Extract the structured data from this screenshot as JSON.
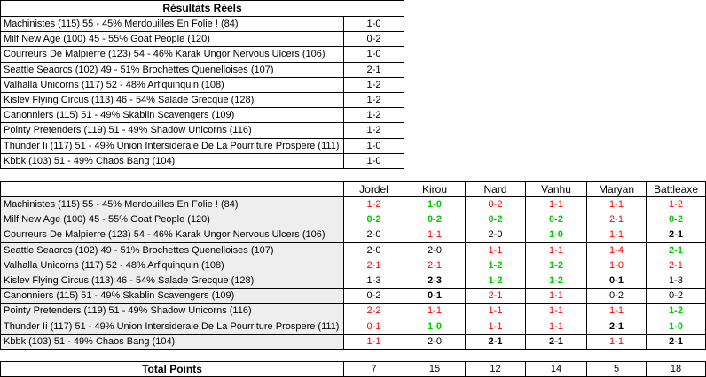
{
  "actual": {
    "title": "Résultats Réels",
    "rows": [
      [
        "Machinistes (115) 55 - 45% Merdouilles En Folie ! (84)",
        "1-0"
      ],
      [
        "Milf New Age (100) 45 - 55% Goat People (120)",
        "0-2"
      ],
      [
        "Courreurs De Malpierre (123) 54 - 46% Karak Ungor Nervous Ulcers (106)",
        "1-0"
      ],
      [
        "Seattle Seaorcs (102) 49 - 51% Brochettes Quenelloises (107)",
        "2-1"
      ],
      [
        "Valhalla Unicorns (117) 52 - 48% Arf'quinquin (108)",
        "1-2"
      ],
      [
        "Kislev Flying Circus (113) 46 - 54% Salade Grecque (128)",
        "1-2"
      ],
      [
        "Canonniers (115) 51 - 49% Skablin Scavengers (109)",
        "1-2"
      ],
      [
        "Pointy Pretenders (119) 51 - 49% Shadow Unicorns (116)",
        "1-2"
      ],
      [
        "Thunder Ii (117) 51 - 49% Union Intersiderale De La Pourriture Prospere (111)",
        "1-0"
      ],
      [
        "Kbbk (103) 51 - 49% Chaos Bang (104)",
        "1-0"
      ]
    ]
  },
  "predictions": {
    "players": [
      "Jordel",
      "Kirou",
      "Nard",
      "Vanhu",
      "Maryan",
      "Battleaxe"
    ],
    "rows": [
      {
        "match": "Machinistes (115) 55 - 45% Merdouilles En Folie ! (84)",
        "picks": [
          "1-2",
          "1-0",
          "0-2",
          "1-1",
          "1-1",
          "1-2"
        ],
        "status": [
          "red",
          "green",
          "red",
          "red",
          "red",
          "red"
        ]
      },
      {
        "match": "Milf New Age (100) 45 - 55% Goat People (120)",
        "picks": [
          "0-2",
          "0-2",
          "0-2",
          "0-2",
          "2-1",
          "0-2"
        ],
        "status": [
          "green",
          "green",
          "green",
          "green",
          "red",
          "green"
        ]
      },
      {
        "match": "Courreurs De Malpierre (123) 54 - 46% Karak Ungor Nervous Ulcers (106)",
        "picks": [
          "2-0",
          "1-1",
          "2-0",
          "1-0",
          "1-1",
          "2-1"
        ],
        "status": [
          "plain",
          "red",
          "plain",
          "green",
          "red",
          "bold"
        ]
      },
      {
        "match": "Seattle Seaorcs (102) 49 - 51% Brochettes Quenelloises (107)",
        "picks": [
          "2-0",
          "2-0",
          "1-1",
          "1-1",
          "1-4",
          "2-1"
        ],
        "status": [
          "plain",
          "plain",
          "red",
          "red",
          "red",
          "green"
        ]
      },
      {
        "match": "Valhalla Unicorns (117) 52 - 48% Arf'quinquin (108)",
        "picks": [
          "2-1",
          "2-1",
          "1-2",
          "1-2",
          "1-0",
          "2-1"
        ],
        "status": [
          "red",
          "red",
          "green",
          "green",
          "red",
          "red"
        ]
      },
      {
        "match": "Kislev Flying Circus (113) 46 - 54% Salade Grecque (128)",
        "picks": [
          "1-3",
          "2-3",
          "1-2",
          "1-2",
          "0-1",
          "1-3"
        ],
        "status": [
          "plain",
          "bold",
          "green",
          "green",
          "bold",
          "plain"
        ]
      },
      {
        "match": "Canonniers (115) 51 - 49% Skablin Scavengers (109)",
        "picks": [
          "0-2",
          "0-1",
          "2-1",
          "1-1",
          "0-2",
          "0-2"
        ],
        "status": [
          "plain",
          "bold",
          "red",
          "red",
          "plain",
          "plain"
        ]
      },
      {
        "match": "Pointy Pretenders (119) 51 - 49% Shadow Unicorns (116)",
        "picks": [
          "2-2",
          "1-1",
          "1-1",
          "1-1",
          "1-1",
          "1-2"
        ],
        "status": [
          "red",
          "red",
          "red",
          "red",
          "red",
          "green"
        ]
      },
      {
        "match": "Thunder Ii (117) 51 - 49% Union Intersiderale De La Pourriture Prospere (111)",
        "picks": [
          "0-1",
          "1-0",
          "1-1",
          "1-1",
          "2-1",
          "1-0"
        ],
        "status": [
          "red",
          "green",
          "red",
          "red",
          "bold",
          "green"
        ]
      },
      {
        "match": "Kbbk (103) 51 - 49% Chaos Bang (104)",
        "picks": [
          "1-1",
          "2-0",
          "2-1",
          "2-1",
          "1-1",
          "2-1"
        ],
        "status": [
          "red",
          "plain",
          "bold",
          "bold",
          "red",
          "bold"
        ]
      }
    ],
    "total_label": "Total Points",
    "totals": [
      7,
      15,
      12,
      14,
      5,
      18
    ]
  }
}
